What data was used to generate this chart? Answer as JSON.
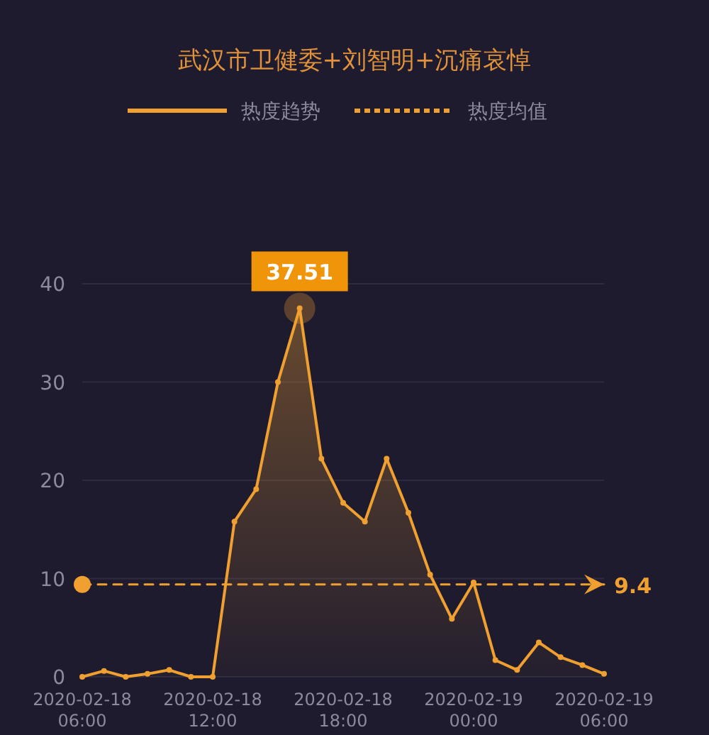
{
  "chart_data": {
    "type": "area",
    "title": "武汉市卫健委+刘智明+沉痛哀悼",
    "x": [
      "2020-02-18T06:00",
      "2020-02-18T07:00",
      "2020-02-18T08:00",
      "2020-02-18T09:00",
      "2020-02-18T10:00",
      "2020-02-18T11:00",
      "2020-02-18T12:00",
      "2020-02-18T13:00",
      "2020-02-18T14:00",
      "2020-02-18T15:00",
      "2020-02-18T16:00",
      "2020-02-18T17:00",
      "2020-02-18T18:00",
      "2020-02-18T19:00",
      "2020-02-18T20:00",
      "2020-02-18T21:00",
      "2020-02-18T22:00",
      "2020-02-18T23:00",
      "2020-02-19T00:00",
      "2020-02-19T01:00",
      "2020-02-19T02:00",
      "2020-02-19T03:00",
      "2020-02-19T04:00",
      "2020-02-19T05:00",
      "2020-02-19T06:00"
    ],
    "series": [
      {
        "name": "热度趋势",
        "color": "#f0a030",
        "marker": "circle",
        "line_style": "solid",
        "values": [
          0,
          0.6,
          0,
          0.3,
          0.7,
          0,
          0,
          15.8,
          19.1,
          30,
          37.51,
          22.2,
          17.7,
          15.8,
          22.2,
          16.7,
          10.4,
          5.9,
          9.6,
          1.7,
          0.7,
          3.5,
          2.0,
          1.2,
          0.3
        ]
      },
      {
        "name": "热度均值",
        "type": "line",
        "color": "#f0a030",
        "marker": "circle",
        "line_style": "dashed",
        "x": [
          "2020-02-18T06:00",
          "2020-02-19T06:00"
        ],
        "values": [
          9.4,
          9.4
        ],
        "value_labels": [
          null,
          "9.4"
        ]
      }
    ],
    "annotations": [
      {
        "text": "37.51",
        "x": "2020-02-18T16:00",
        "y": 37.51
      }
    ],
    "xlim": [
      "2020-02-18T06:00",
      "2020-02-19T06:00"
    ],
    "xticks": [
      {
        "value": "2020-02-18T06:00",
        "label": "2020-02-18 06:00"
      },
      {
        "value": "2020-02-18T12:00",
        "label": "2020-02-18 12:00"
      },
      {
        "value": "2020-02-18T18:00",
        "label": "2020-02-18 18:00"
      },
      {
        "value": "2020-02-19T00:00",
        "label": "2020-02-19 00:00"
      },
      {
        "value": "2020-02-19T06:00",
        "label": "2020-02-19 06:00"
      }
    ],
    "ylim": [
      0,
      40
    ],
    "yticks": [
      0,
      10,
      20,
      30,
      40
    ],
    "grid": "y",
    "legend": "top"
  }
}
